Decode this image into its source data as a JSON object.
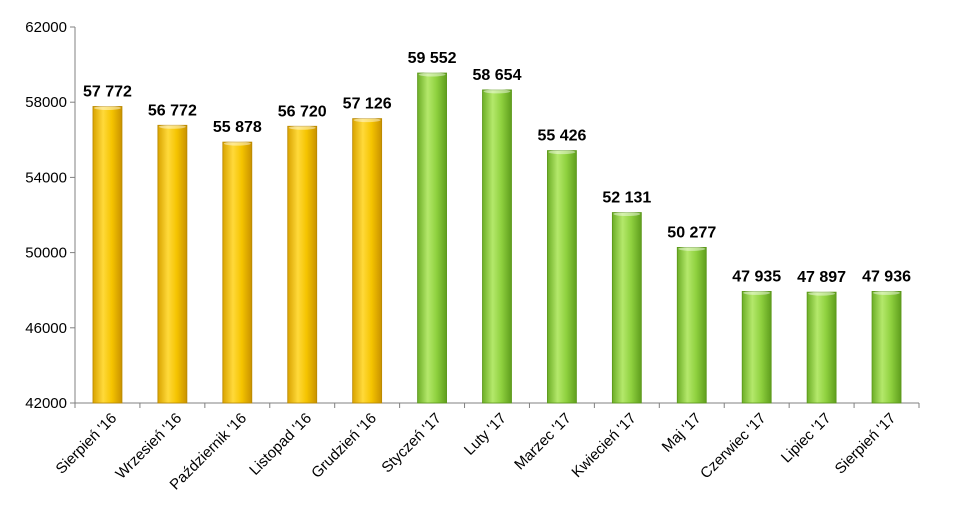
{
  "chart_data": {
    "type": "bar",
    "categories": [
      "Sierpień '16",
      "Wrzesień '16",
      "Październik '16",
      "Listopad '16",
      "Grudzień '16",
      "Styczeń '17",
      "Luty '17",
      "Marzec '17",
      "Kwiecień '17",
      "Maj '17",
      "Czerwiec '17",
      "Lipiec '17",
      "Sierpień '17"
    ],
    "values": [
      57772,
      56772,
      55878,
      56720,
      57126,
      59552,
      58654,
      55426,
      52131,
      50277,
      47935,
      47897,
      47936
    ],
    "data_labels": [
      "57 772",
      "56 772",
      "55 878",
      "56 720",
      "57 126",
      "59 552",
      "58 654",
      "55 426",
      "52 131",
      "50 277",
      "47 935",
      "47 897",
      "47 936"
    ],
    "bar_colors": [
      "#f5c400",
      "#f5c400",
      "#f5c400",
      "#f5c400",
      "#f5c400",
      "#8fd13f",
      "#8fd13f",
      "#8fd13f",
      "#8fd13f",
      "#8fd13f",
      "#8fd13f",
      "#8fd13f",
      "#8fd13f"
    ],
    "ylim": [
      42000,
      62000
    ],
    "yticks": [
      42000,
      46000,
      50000,
      54000,
      58000,
      62000
    ],
    "ytick_labels": [
      "42000",
      "46000",
      "50000",
      "54000",
      "58000",
      "62000"
    ],
    "title": "",
    "xlabel": "",
    "ylabel": "",
    "grid": false,
    "legend": "none"
  }
}
